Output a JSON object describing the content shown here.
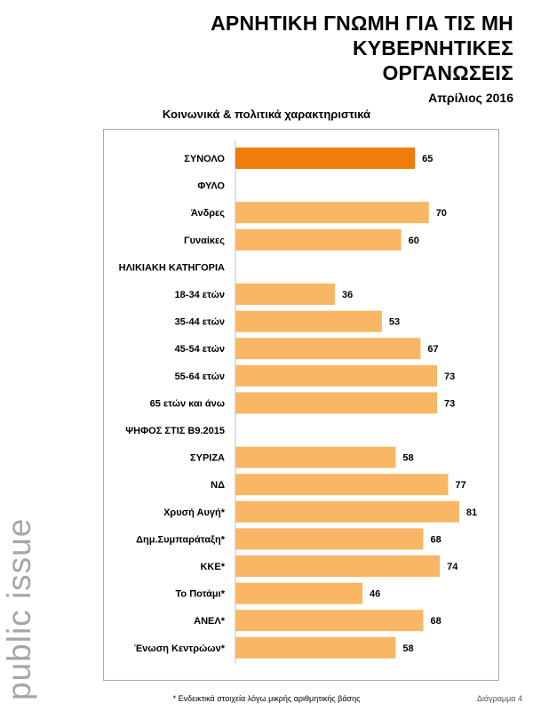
{
  "brand": {
    "text": "public issue"
  },
  "header": {
    "title_line1": "ΑΡΝΗΤΙΚΗ ΓΝΩΜΗ ΓΙΑ ΤΙΣ ΜΗ ΚΥΒΕΡΝΗΤΙΚΕΣ",
    "title_line2": "ΟΡΓΑΝΩΣΕΙΣ",
    "date": "Απρίλιος 2016"
  },
  "footer": {
    "note": "* Ενδεικτικά στοιχεία λόγω μικρής αριθμητικής βάσης",
    "diagram_label": "Διάγραμμα 4"
  },
  "colors": {
    "total_bar": "#ee7d0a",
    "bar": "#f9b665",
    "brand_text": "#a6a6a6"
  },
  "chart_data": {
    "type": "bar",
    "orientation": "horizontal",
    "title": "Κοινωνικά & πολιτικά χαρακτηριστικά",
    "xlim": [
      0,
      100
    ],
    "grid": false,
    "categories": [
      "ΣΥΝΟΛΟ",
      "ΦΥΛΟ",
      "Άνδρες",
      "Γυναίκες",
      "ΗΛΙΚΙΑΚΗ ΚΑΤΗΓΟΡΙΑ",
      "18-34 ετών",
      "35-44 ετών",
      "45-54 ετών",
      "55-64 ετών",
      "65 ετών και άνω",
      "ΨΗΦΟΣ ΣΤΙΣ Β9.2015",
      "ΣΥΡΙΖΑ",
      "ΝΔ",
      "Χρυσή Αυγή*",
      "Δημ.Συμπαράταξη*",
      "ΚΚΕ*",
      "Το Ποτάμι*",
      "ΑΝΕΛ*",
      "Ένωση Κεντρώων*"
    ],
    "values": [
      65,
      null,
      70,
      60,
      null,
      36,
      53,
      67,
      73,
      73,
      null,
      58,
      77,
      81,
      68,
      74,
      46,
      68,
      58
    ],
    "data_labels": [
      "65",
      "",
      "70",
      "60",
      "",
      "36",
      "53",
      "67",
      "73",
      "73",
      "",
      "58",
      "77",
      "81",
      "68",
      "74",
      "46",
      "68",
      "58"
    ],
    "highlight": [
      0
    ]
  }
}
